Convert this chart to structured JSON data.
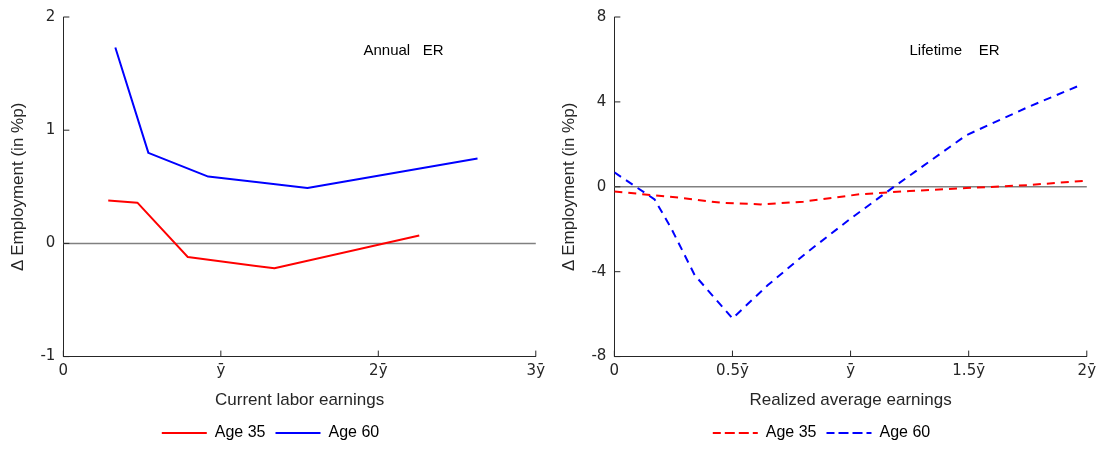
{
  "chart_data": [
    {
      "type": "line",
      "xlabel": "Current labor earnings",
      "ylabel": "Δ Employment (in %p)",
      "annotations": [
        "Annual   ER"
      ],
      "xlim": [
        0,
        3
      ],
      "xticks": [
        0,
        {
          "value": 1,
          "label": "ȳ"
        },
        {
          "value": 2,
          "label": "2ȳ"
        },
        {
          "value": 3,
          "label": "3ȳ"
        }
      ],
      "ylim": [
        -1,
        2
      ],
      "yticks": [
        -1,
        0,
        1,
        2
      ],
      "grid": false,
      "legend": "bottom",
      "line_style": "solid",
      "marker": "none",
      "ref_lines": [
        {
          "axis": "y",
          "value": 0,
          "color": "#808080"
        }
      ],
      "series": [
        {
          "name": "Age 35",
          "color": "#ff0000",
          "x": [
            0.285,
            0.47,
            0.79,
            1.34,
            2.26
          ],
          "values": [
            0.38,
            0.36,
            -0.12,
            -0.22,
            0.07
          ]
        },
        {
          "name": "Age 60",
          "color": "#0000ff",
          "x": [
            0.33,
            0.54,
            0.92,
            1.55,
            2.63
          ],
          "values": [
            1.73,
            0.8,
            0.59,
            0.49,
            0.75
          ]
        }
      ]
    },
    {
      "type": "line",
      "xlabel": "Realized average earnings",
      "ylabel": "Δ Employment (in %p)",
      "annotations": [
        "Lifetime    ER"
      ],
      "xlim": [
        0,
        2
      ],
      "xticks": [
        0,
        {
          "value": 0.5,
          "label": "0.5ȳ"
        },
        {
          "value": 1,
          "label": "ȳ"
        },
        {
          "value": 1.5,
          "label": "1.5ȳ"
        },
        {
          "value": 2,
          "label": "2ȳ"
        }
      ],
      "ylim": [
        -8,
        8
      ],
      "yticks": [
        -8,
        -4,
        0,
        4,
        8
      ],
      "grid": false,
      "legend": "bottom",
      "line_style": "dashed",
      "marker": "none",
      "ref_lines": [
        {
          "axis": "y",
          "value": 0,
          "color": "#808080"
        }
      ],
      "series": [
        {
          "name": "Age 35",
          "color": "#ff0000",
          "x": [
            0,
            0.27,
            0.45,
            0.62,
            0.8,
            1.04,
            1.25,
            1.49,
            1.75,
            2
          ],
          "values": [
            -0.22,
            -0.51,
            -0.75,
            -0.83,
            -0.7,
            -0.35,
            -0.2,
            -0.06,
            0.08,
            0.29
          ]
        },
        {
          "name": "Age 60",
          "color": "#0000ff",
          "x": [
            0,
            0.17,
            0.24,
            0.34,
            0.5,
            0.65,
            0.82,
            1.0,
            1.17,
            1.49,
            1.75,
            1.96
          ],
          "values": [
            0.68,
            -0.59,
            -1.94,
            -4.16,
            -6.2,
            -4.63,
            -3.05,
            -1.5,
            -0.11,
            2.43,
            3.75,
            4.73
          ]
        }
      ]
    }
  ]
}
